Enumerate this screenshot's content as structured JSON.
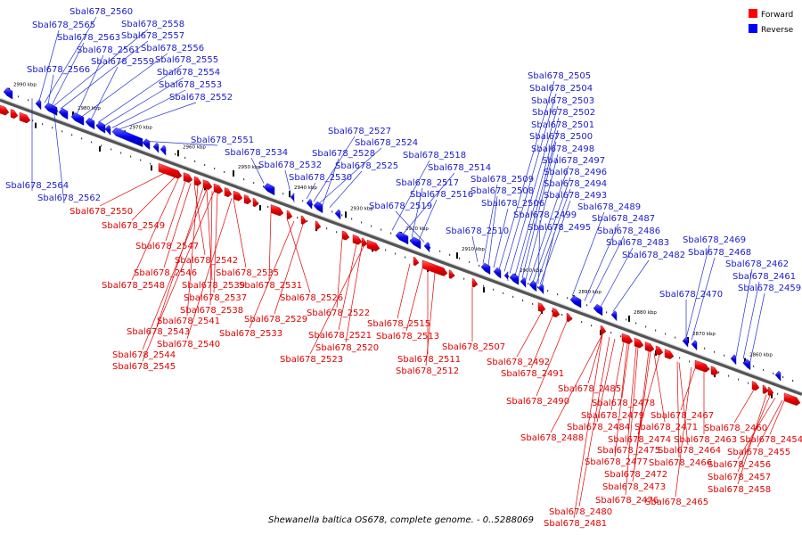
{
  "legend": {
    "forward": {
      "label": "Forward",
      "color": "#ff0000"
    },
    "reverse": {
      "label": "Reverse",
      "color": "#0000ff"
    }
  },
  "caption": "Shewanella baltica OS678, complete genome. - 0..5288069",
  "ticks": [
    {
      "label": "2990 kbp"
    },
    {
      "label": "2980 kbp"
    },
    {
      "label": "2970 kbp"
    },
    {
      "label": "2960 kbp"
    },
    {
      "label": "2950 kbp"
    },
    {
      "label": "2940 kbp"
    },
    {
      "label": "2930 kbp"
    },
    {
      "label": "2920 kbp"
    },
    {
      "label": "2910 kbp"
    },
    {
      "label": "2900 kbp"
    },
    {
      "label": "2890 kbp"
    },
    {
      "label": "2880 kbp"
    },
    {
      "label": "2870 kbp"
    },
    {
      "label": "2860 kbp"
    }
  ],
  "reverse_genes": [
    "Sbal678_2560",
    "Sbal678_2565",
    "Sbal678_2558",
    "Sbal678_2563",
    "Sbal678_2557",
    "Sbal678_2561",
    "Sbal678_2556",
    "Sbal678_2559",
    "Sbal678_2555",
    "Sbal678_2566",
    "Sbal678_2554",
    "Sbal678_2553",
    "Sbal678_2552",
    "Sbal678_2551",
    "Sbal678_2564",
    "Sbal678_2562",
    "Sbal678_2534",
    "Sbal678_2532",
    "Sbal678_2530",
    "Sbal678_2527",
    "Sbal678_2524",
    "Sbal678_2528",
    "Sbal678_2525",
    "Sbal678_2518",
    "Sbal678_2514",
    "Sbal678_2517",
    "Sbal678_2516",
    "Sbal678_2519",
    "Sbal678_2510",
    "Sbal678_2509",
    "Sbal678_2508",
    "Sbal678_2506",
    "Sbal678_2505",
    "Sbal678_2504",
    "Sbal678_2503",
    "Sbal678_2502",
    "Sbal678_2501",
    "Sbal678_2500",
    "Sbal678_2498",
    "Sbal678_2497",
    "Sbal678_2496",
    "Sbal678_2494",
    "Sbal678_2493",
    "Sbal678_2499",
    "Sbal678_2495",
    "Sbal678_2489",
    "Sbal678_2487",
    "Sbal678_2486",
    "Sbal678_2483",
    "Sbal678_2482",
    "Sbal678_2469",
    "Sbal678_2468",
    "Sbal678_2462",
    "Sbal678_2461",
    "Sbal678_2459",
    "Sbal678_2470"
  ],
  "forward_genes": [
    "Sbal678_2550",
    "Sbal678_2549",
    "Sbal678_2547",
    "Sbal678_2542",
    "Sbal678_2546",
    "Sbal678_2535",
    "Sbal678_2548",
    "Sbal678_2539",
    "Sbal678_2531",
    "Sbal678_2537",
    "Sbal678_2526",
    "Sbal678_2538",
    "Sbal678_2529",
    "Sbal678_2541",
    "Sbal678_2533",
    "Sbal678_2543",
    "Sbal678_2540",
    "Sbal678_2544",
    "Sbal678_2545",
    "Sbal678_2522",
    "Sbal678_2515",
    "Sbal678_2521",
    "Sbal678_2513",
    "Sbal678_2520",
    "Sbal678_2507",
    "Sbal678_2523",
    "Sbal678_2511",
    "Sbal678_2512",
    "Sbal678_2492",
    "Sbal678_2491",
    "Sbal678_2490",
    "Sbal678_2485",
    "Sbal678_2478",
    "Sbal678_2479",
    "Sbal678_2467",
    "Sbal678_2484",
    "Sbal678_2471",
    "Sbal678_2488",
    "Sbal678_2474",
    "Sbal678_2463",
    "Sbal678_2460",
    "Sbal678_2475",
    "Sbal678_2464",
    "Sbal678_2454",
    "Sbal678_2477",
    "Sbal678_2466",
    "Sbal678_2455",
    "Sbal678_2472",
    "Sbal678_2456",
    "Sbal678_2473",
    "Sbal678_2457",
    "Sbal678_2476",
    "Sbal678_2458",
    "Sbal678_2465",
    "Sbal678_2480",
    "Sbal678_2481"
  ]
}
